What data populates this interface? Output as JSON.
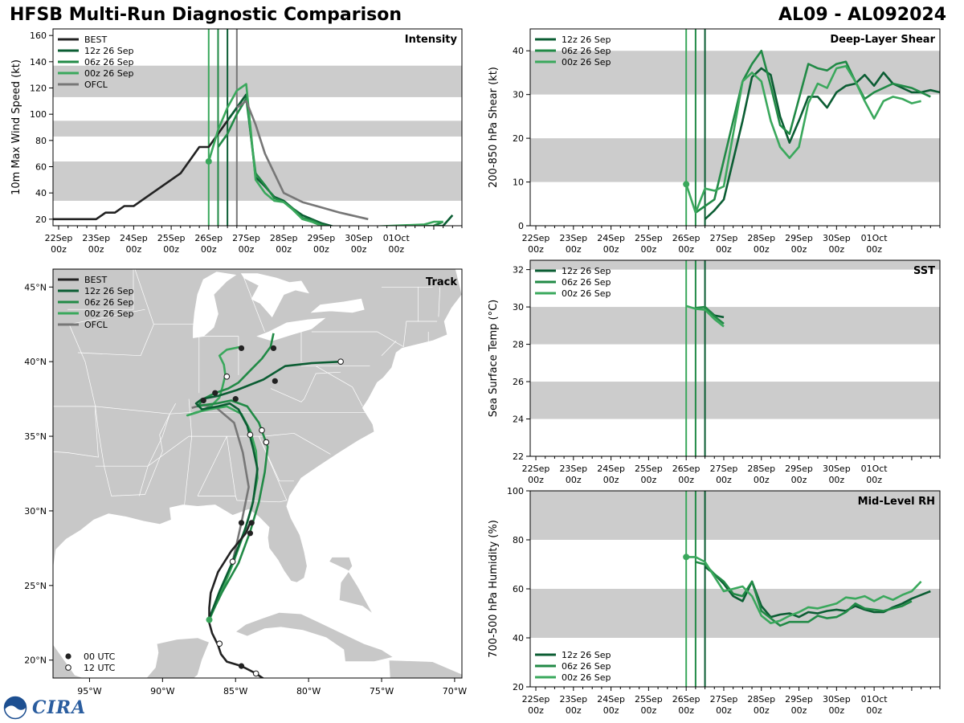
{
  "header": {
    "title_left": "HFSB Multi-Run Diagnostic Comparison",
    "title_right": "AL09 - AL092024"
  },
  "logo": {
    "noaa": "NOAA",
    "cira": "CIRA"
  },
  "colors": {
    "best": "#222222",
    "run12z": "#0b5d33",
    "run06z": "#218a46",
    "run00z": "#3aa85c",
    "ofcl": "#777777",
    "band": "#cccccc",
    "land": "#c8c8c8",
    "ocean": "#ffffff"
  },
  "time_axis": {
    "tick_labels": [
      [
        "22Sep",
        "00z"
      ],
      [
        "23Sep",
        "00z"
      ],
      [
        "24Sep",
        "00z"
      ],
      [
        "25Sep",
        "00z"
      ],
      [
        "26Sep",
        "00z"
      ],
      [
        "27Sep",
        "00z"
      ],
      [
        "28Sep",
        "00z"
      ],
      [
        "29Sep",
        "00z"
      ],
      [
        "30Sep",
        "00z"
      ],
      [
        "01Oct",
        "00z"
      ]
    ],
    "xlim_days": [
      -0.15,
      10.75
    ],
    "init_times_days": {
      "run00z": 4.0,
      "run06z": 4.25,
      "run12z": 4.5,
      "ofcl": 4.75
    }
  },
  "chart_data": [
    {
      "type": "line",
      "id": "intensity",
      "panel_label": "Intensity",
      "ylabel": "10m Max Wind Speed (kt)",
      "ylim": [
        15,
        165
      ],
      "yticks": [
        20,
        40,
        60,
        80,
        100,
        120,
        140,
        160
      ],
      "bands": [
        [
          34,
          64
        ],
        [
          83,
          95
        ],
        [
          113,
          137
        ]
      ],
      "legend": [
        "BEST",
        "12z 26 Sep",
        "06z 26 Sep",
        "00z 26 Sep",
        "OFCL"
      ],
      "series": [
        {
          "name": "BEST",
          "key": "best",
          "x": [
            -0.15,
            1,
            1.25,
            1.5,
            1.75,
            2,
            2.5,
            3.25,
            3.75,
            4.0,
            4.5,
            4.75,
            5.0
          ],
          "y": [
            20,
            20,
            25,
            25,
            30,
            30,
            40,
            55,
            75,
            75,
            95,
            105,
            115
          ]
        },
        {
          "name": "12z 26 Sep",
          "key": "run12z",
          "x": [
            4.5,
            4.75,
            5.0,
            5.25,
            5.5,
            5.75,
            6.0,
            6.25,
            6.5,
            6.75,
            7.0,
            7.25,
            7.5,
            10.25,
            10.5
          ],
          "y": [
            95,
            105,
            115,
            52,
            45,
            37,
            34,
            28,
            23,
            20,
            17,
            15,
            13,
            15,
            23
          ]
        },
        {
          "name": "06z 26 Sep",
          "key": "run06z",
          "x": [
            4.25,
            4.5,
            4.75,
            5.0,
            5.25,
            5.5,
            5.75,
            6.0,
            6.25,
            6.5,
            6.75,
            7.0,
            7.25,
            10.0,
            10.25
          ],
          "y": [
            75,
            85,
            100,
            112,
            55,
            46,
            36,
            33,
            28,
            21,
            19,
            16,
            14,
            15,
            18
          ]
        },
        {
          "name": "00z 26 Sep",
          "key": "run00z",
          "x": [
            4.0,
            4.25,
            4.5,
            4.75,
            5.0,
            5.25,
            5.5,
            5.75,
            6.0,
            6.25,
            6.5,
            6.75,
            7.0,
            7.25,
            9.75,
            10.0,
            10.25
          ],
          "y": [
            64,
            88,
            105,
            118,
            123,
            50,
            40,
            34,
            33,
            27,
            20,
            18,
            15,
            13,
            16,
            18,
            18
          ]
        },
        {
          "name": "OFCL",
          "key": "ofcl",
          "x": [
            4.75,
            5.0,
            5.25,
            5.5,
            6.0,
            6.5,
            7.0,
            7.5,
            8.25
          ],
          "y": [
            105,
            110,
            92,
            70,
            40,
            33,
            29,
            25,
            20
          ]
        }
      ],
      "init_marker": {
        "key": "run00z",
        "x": 4.0,
        "y": 64
      }
    },
    {
      "type": "line",
      "id": "shear",
      "panel_label": "Deep-Layer Shear",
      "ylabel": "200-850 hPa Shear (kt)",
      "ylim": [
        0,
        45
      ],
      "yticks": [
        0,
        10,
        20,
        30,
        40
      ],
      "bands": [
        [
          10,
          20
        ],
        [
          30,
          40
        ]
      ],
      "legend": [
        "12z 26 Sep",
        "06z 26 Sep",
        "00z 26 Sep"
      ],
      "series": [
        {
          "name": "12z 26 Sep",
          "key": "run12z",
          "x": [
            4.5,
            4.75,
            5.0,
            5.5,
            5.75,
            6.0,
            6.25,
            6.5,
            6.75,
            7.0,
            7.25,
            7.5,
            7.75,
            8.0,
            8.25,
            8.5,
            8.75,
            9.0,
            9.25,
            9.5,
            9.75,
            10.0,
            10.25,
            10.5,
            10.75
          ],
          "y": [
            1.5,
            3.5,
            6,
            24,
            34,
            36,
            34.5,
            25,
            19,
            24,
            29.5,
            29.5,
            27,
            30.5,
            32,
            32.5,
            34.5,
            32,
            35,
            32.5,
            31.5,
            30.5,
            30.5,
            31,
            30.5
          ]
        },
        {
          "name": "06z 26 Sep",
          "key": "run06z",
          "x": [
            4.25,
            4.5,
            4.75,
            5.0,
            5.5,
            5.75,
            6.0,
            6.25,
            6.5,
            6.75,
            7.0,
            7.25,
            7.5,
            7.75,
            8.0,
            8.25,
            8.5,
            8.75,
            9.0,
            9.25,
            9.5,
            9.75,
            10.0,
            10.25,
            10.5
          ],
          "y": [
            3,
            4.5,
            6,
            15,
            33,
            37,
            40,
            32,
            23,
            21,
            29,
            37,
            36,
            35.5,
            37,
            37.5,
            33,
            29,
            30.5,
            31.5,
            32.5,
            32,
            31.5,
            30.5,
            29.5
          ]
        },
        {
          "name": "00z 26 Sep",
          "key": "run00z",
          "x": [
            4.0,
            4.25,
            4.5,
            4.75,
            5.0,
            5.5,
            5.75,
            6.0,
            6.25,
            6.5,
            6.75,
            7.0,
            7.25,
            7.5,
            7.75,
            8.0,
            8.25,
            8.5,
            8.75,
            9.0,
            9.25,
            9.5,
            9.75,
            10.0,
            10.25
          ],
          "y": [
            9.5,
            3,
            8.5,
            8,
            9,
            33,
            35,
            33,
            24,
            18,
            15.5,
            18,
            28,
            32.5,
            31.5,
            36,
            36.5,
            33,
            28.5,
            24.5,
            28.5,
            29.5,
            29,
            28,
            28.5
          ]
        }
      ],
      "init_marker": {
        "key": "run00z",
        "x": 4.0,
        "y": 9.5
      }
    },
    {
      "type": "line",
      "id": "sst",
      "panel_label": "SST",
      "ylabel": "Sea Surface Temp (°C)",
      "ylim": [
        22,
        32.5
      ],
      "yticks": [
        22,
        24,
        26,
        28,
        30,
        32
      ],
      "bands": [
        [
          24,
          26
        ],
        [
          28,
          30
        ],
        [
          32,
          32.5
        ]
      ],
      "legend": [
        "12z 26 Sep",
        "06z 26 Sep",
        "00z 26 Sep"
      ],
      "series": [
        {
          "name": "12z 26 Sep",
          "key": "run12z",
          "x": [
            4.5,
            4.75,
            5.0
          ],
          "y": [
            30.0,
            29.55,
            29.45
          ]
        },
        {
          "name": "06z 26 Sep",
          "key": "run06z",
          "x": [
            4.25,
            4.5,
            4.75,
            5.0
          ],
          "y": [
            29.95,
            30.0,
            29.5,
            29.1
          ]
        },
        {
          "name": "00z 26 Sep",
          "key": "run00z",
          "x": [
            4.0,
            4.25,
            4.5,
            4.75,
            5.0
          ],
          "y": [
            30.05,
            29.9,
            29.85,
            29.35,
            28.95
          ]
        }
      ]
    },
    {
      "type": "line",
      "id": "rh",
      "panel_label": "Mid-Level RH",
      "ylabel": "700-500 hPa Humidity (%)",
      "ylim": [
        20,
        100
      ],
      "yticks": [
        20,
        40,
        60,
        80,
        100
      ],
      "bands": [
        [
          40,
          60
        ],
        [
          80,
          100
        ]
      ],
      "legend": [
        "12z 26 Sep",
        "06z 26 Sep",
        "00z 26 Sep"
      ],
      "series": [
        {
          "name": "12z 26 Sep",
          "key": "run12z",
          "x": [
            4.5,
            4.75,
            5.0,
            5.25,
            5.5,
            5.75,
            6.0,
            6.25,
            6.5,
            6.75,
            7.0,
            7.25,
            7.5,
            7.75,
            8.0,
            8.25,
            8.5,
            8.75,
            9.0,
            9.25,
            9.5,
            9.75,
            10.0,
            10.25,
            10.5
          ],
          "y": [
            69,
            66,
            62,
            57,
            55,
            63,
            53,
            48.5,
            49.5,
            50,
            48.5,
            50.5,
            50,
            51,
            51.5,
            51,
            53,
            51.5,
            50.5,
            50.5,
            52.5,
            54,
            56,
            57.5,
            59
          ]
        },
        {
          "name": "06z 26 Sep",
          "key": "run06z",
          "x": [
            4.25,
            4.5,
            4.75,
            5.0,
            5.25,
            5.5,
            5.75,
            6.0,
            6.25,
            6.5,
            6.75,
            7.0,
            7.25,
            7.5,
            7.75,
            8.0,
            8.25,
            8.5,
            8.75,
            9.0,
            9.25,
            9.5,
            9.75,
            10.0
          ],
          "y": [
            71,
            70,
            66,
            63,
            58,
            57,
            63,
            51,
            48,
            45,
            46.5,
            46.5,
            46.5,
            49,
            48,
            48.5,
            50.5,
            54,
            52,
            51.5,
            51,
            52,
            53,
            55
          ]
        },
        {
          "name": "00z 26 Sep",
          "key": "run00z",
          "x": [
            4.0,
            4.25,
            4.5,
            4.75,
            5.0,
            5.25,
            5.5,
            5.75,
            6.0,
            6.25,
            6.5,
            6.75,
            7.0,
            7.25,
            7.5,
            7.75,
            8.0,
            8.25,
            8.5,
            8.75,
            9.0,
            9.25,
            9.5,
            9.75,
            10.0,
            10.25
          ],
          "y": [
            73,
            73,
            71,
            65,
            59,
            60,
            61,
            57,
            49,
            46,
            47,
            49,
            50.5,
            52.5,
            52,
            53,
            54,
            56.5,
            56,
            57,
            55,
            57,
            55.5,
            57.5,
            59,
            63
          ]
        }
      ],
      "init_marker": {
        "key": "run00z",
        "x": 4.0,
        "y": 73
      }
    },
    {
      "type": "line",
      "id": "track",
      "panel_label": "Track",
      "xlim": [
        -97.5,
        -69.5
      ],
      "ylim": [
        18.8,
        46.2
      ],
      "xticks": [
        -95,
        -90,
        -85,
        -80,
        -75,
        -70
      ],
      "yticks": [
        20,
        25,
        30,
        35,
        40,
        45
      ],
      "xtick_labels": [
        "95°W",
        "90°W",
        "85°W",
        "80°W",
        "75°W",
        "70°W"
      ],
      "ytick_labels": [
        "20°N",
        "25°N",
        "30°N",
        "35°N",
        "40°N",
        "45°N"
      ],
      "legend": [
        "BEST",
        "12z 26 Sep",
        "06z 26 Sep",
        "00z 26 Sep",
        "OFCL"
      ],
      "time_legend": [
        "00 UTC",
        "12 UTC"
      ],
      "series": [
        {
          "name": "BEST",
          "key": "best",
          "lon": [
            -82.7,
            -83.6,
            -84.6,
            -85.6,
            -86.0,
            -86.2,
            -86.6,
            -86.8,
            -86.8,
            -86.7,
            -86.2,
            -85.3,
            -84.3,
            -84.0
          ],
          "lat": [
            18.5,
            19.1,
            19.6,
            19.9,
            20.4,
            21.0,
            21.8,
            22.5,
            23.5,
            24.5,
            25.9,
            27.3,
            28.5,
            29.2
          ],
          "dots00": [
            [
              -84.6,
              19.6
            ],
            [
              -84.0,
              28.5
            ],
            [
              -83.9,
              29.2
            ]
          ],
          "dots12": [
            [
              -83.6,
              19.1
            ],
            [
              -86.1,
              21.1
            ]
          ]
        },
        {
          "name": "12z 26 Sep",
          "key": "run12z",
          "lon": [
            -86.8,
            -86.1,
            -85.2,
            -84.3,
            -83.8,
            -83.5,
            -83.8,
            -84.2,
            -84.8,
            -85.4,
            -86.2,
            -86.8,
            -87.3,
            -87.7,
            -87.3,
            -86.2,
            -84.9,
            -83.1,
            -81.6,
            -79.8,
            -77.8
          ],
          "lat": [
            22.8,
            24.6,
            26.6,
            28.9,
            30.6,
            32.8,
            34.2,
            35.7,
            36.8,
            37.2,
            37.0,
            36.9,
            36.8,
            37.2,
            37.5,
            37.7,
            38.1,
            38.8,
            39.7,
            39.9,
            40.0
          ],
          "dots00": [
            [
              -87.2,
              37.4
            ],
            [
              -85.0,
              37.5
            ],
            [
              -82.3,
              38.7
            ]
          ],
          "dots12": [
            [
              -77.8,
              40.0
            ],
            [
              -83.2,
              35.4
            ]
          ]
        },
        {
          "name": "06z 26 Sep",
          "key": "run06z",
          "lon": [
            -86.8,
            -85.9,
            -84.8,
            -84.0,
            -83.4,
            -83.0,
            -82.8,
            -83.4,
            -84.2,
            -85.3,
            -86.3,
            -87.1,
            -87.6,
            -87.2,
            -86.4,
            -85.5,
            -84.8,
            -84.0,
            -83.2,
            -82.6,
            -82.4
          ],
          "lat": [
            22.8,
            24.6,
            26.5,
            28.6,
            30.6,
            32.6,
            34.3,
            35.9,
            37.0,
            37.4,
            37.2,
            37.1,
            37.0,
            37.5,
            37.9,
            38.2,
            38.6,
            39.4,
            40.2,
            41.0,
            41.9
          ],
          "dots00": [
            [
              -82.4,
              40.9
            ],
            [
              -86.4,
              37.9
            ]
          ],
          "dots12": [
            [
              -82.9,
              34.6
            ]
          ]
        },
        {
          "name": "00z 26 Sep",
          "key": "run00z",
          "lon": [
            -86.8,
            -86.0,
            -85.2,
            -84.5,
            -83.9,
            -83.5,
            -83.6,
            -84.0,
            -84.6,
            -85.6,
            -86.8,
            -87.7,
            -88.3,
            -87.6,
            -86.7,
            -86.1,
            -85.9,
            -85.7,
            -85.8,
            -86.1,
            -85.6,
            -84.6
          ],
          "lat": [
            22.7,
            24.5,
            26.4,
            28.3,
            30.2,
            32.2,
            34.0,
            35.4,
            36.5,
            37.0,
            36.8,
            36.6,
            36.4,
            36.6,
            37.0,
            37.6,
            38.3,
            39.1,
            39.8,
            40.4,
            40.8,
            41.0
          ],
          "dots00": [
            [
              -84.6,
              40.9
            ]
          ],
          "dots12": [
            [
              -84.0,
              35.1
            ],
            [
              -85.6,
              39.0
            ]
          ]
        },
        {
          "name": "OFCL",
          "key": "ofcl",
          "lon": [
            -85.2,
            -84.6,
            -84.1,
            -84.5,
            -85.1,
            -86.3,
            -87.3,
            -88.0
          ],
          "lat": [
            26.6,
            29.2,
            31.6,
            33.9,
            35.9,
            36.9,
            37.1,
            36.9
          ],
          "dots00": [
            [
              -84.6,
              29.2
            ]
          ],
          "dots12": [
            [
              -85.2,
              26.6
            ]
          ]
        }
      ],
      "init_marker": {
        "key": "run00z",
        "lon": -86.8,
        "lat": 22.7
      }
    }
  ]
}
